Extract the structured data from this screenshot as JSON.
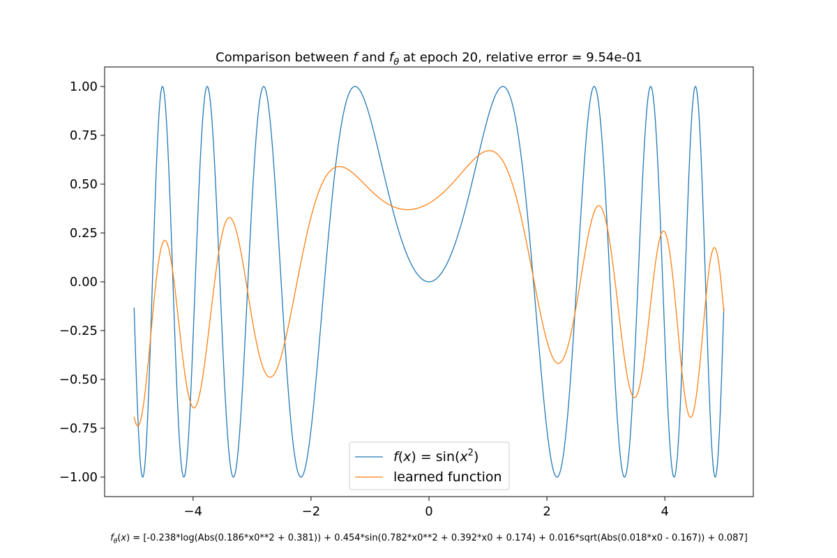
{
  "chart_data": {
    "type": "line",
    "title": "Comparison between f and fθ at epoch 20, relative error = 9.54e-01",
    "title_parts": {
      "prefix": "Comparison between ",
      "f": "f",
      "and": " and ",
      "ftheta_f": "f",
      "ftheta_sub": "θ",
      "suffix": " at epoch 20, relative error = 9.54e-01"
    },
    "xlim": [
      -5.5,
      5.5
    ],
    "ylim": [
      -1.1,
      1.1
    ],
    "xticks": [
      -4,
      -2,
      0,
      2,
      4
    ],
    "xtick_labels": [
      "−4",
      "−2",
      "0",
      "2",
      "4"
    ],
    "yticks": [
      -1.0,
      -0.75,
      -0.5,
      -0.25,
      0.0,
      0.25,
      0.5,
      0.75,
      1.0
    ],
    "ytick_labels": [
      "−1.00",
      "−0.75",
      "−0.50",
      "−0.25",
      "0.00",
      "0.25",
      "0.50",
      "0.75",
      "1.00"
    ],
    "grid": false,
    "legend_position": "lower-center",
    "series": [
      {
        "name": "f(x) = sin(x²)",
        "color": "#1f77b4",
        "x_range": [
          -5,
          5
        ],
        "expression": "sin(x^2)",
        "legend": {
          "f": "f",
          "open": "(",
          "x": "x",
          "mid": ") = sin(",
          "x2": "x",
          "sup": "2",
          "close": ")"
        }
      },
      {
        "name": "learned function",
        "color": "#ff7f0e",
        "x_range": [
          -5,
          5
        ],
        "expression": "-0.238*log(Abs(0.186*x0**2 + 0.381)) + 0.454*sin(0.782*x0**2 + 0.392*x0 + 0.174) + 0.016*sqrt(Abs(0.018*x0 - 0.167)) + 0.087"
      }
    ],
    "learned_coefficients": {
      "log_coef": -0.238,
      "log_a": 0.186,
      "log_b": 0.381,
      "sin_coef": 0.454,
      "sin_a": 0.782,
      "sin_b": 0.392,
      "sin_c": 0.174,
      "sqrt_coef": 0.016,
      "sqrt_a": 0.018,
      "sqrt_b": -0.167,
      "const": 0.087
    },
    "footer": {
      "lhs_f": "f",
      "lhs_sub": "θ",
      "lhs_x": "x",
      "rhs": "[-0.238*log(Abs(0.186*x0**2 + 0.381)) + 0.454*sin(0.782*x0**2 + 0.392*x0 + 0.174) + 0.016*sqrt(Abs(0.018*x0 - 0.167)) + 0.087]"
    }
  }
}
